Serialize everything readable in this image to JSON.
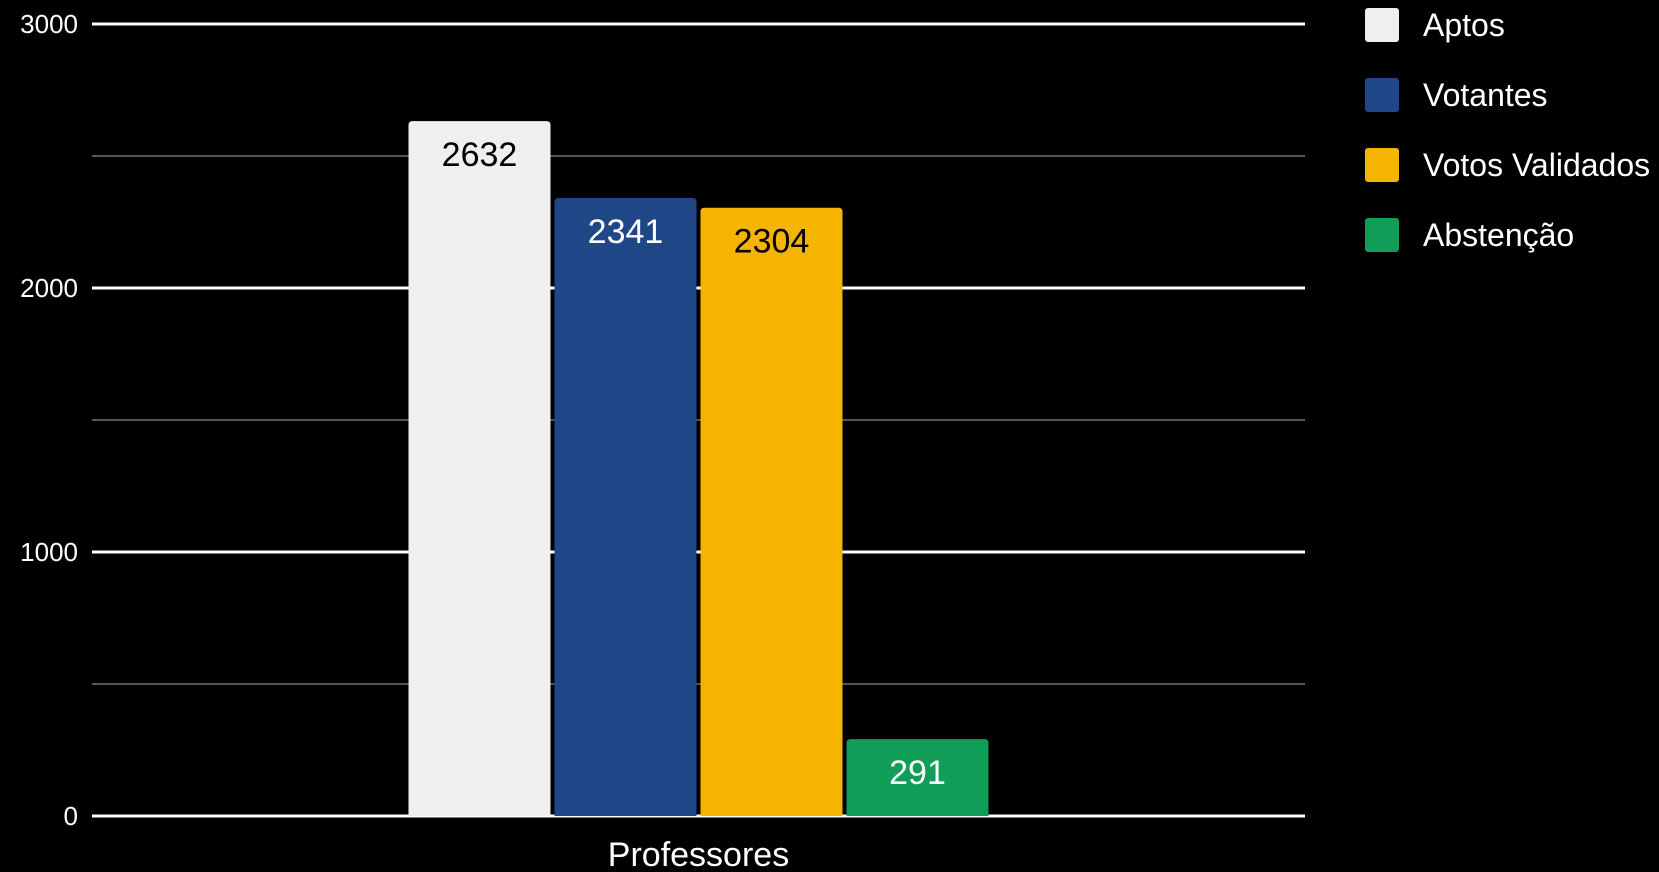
{
  "chart_data": {
    "type": "bar",
    "categories": [
      "Professores"
    ],
    "series": [
      {
        "name": "Aptos",
        "values": [
          2632
        ],
        "color": "#efefef",
        "label_color": "#000000"
      },
      {
        "name": "Votantes",
        "values": [
          2341
        ],
        "color": "#1f4788",
        "label_color": "#ffffff"
      },
      {
        "name": "Votos Validados",
        "values": [
          2304
        ],
        "color": "#f4b400",
        "label_color": "#000000"
      },
      {
        "name": "Abstenção",
        "values": [
          291
        ],
        "color": "#0f9d58",
        "label_color": "#ffffff"
      }
    ],
    "ylim": [
      0,
      3000
    ],
    "y_ticks": [
      0,
      1000,
      2000,
      3000
    ],
    "y_minor_ticks": [
      500,
      1500,
      2500
    ],
    "grid": true,
    "legend_position": "right",
    "background": "#000000",
    "title": "",
    "xlabel": "",
    "ylabel": ""
  }
}
